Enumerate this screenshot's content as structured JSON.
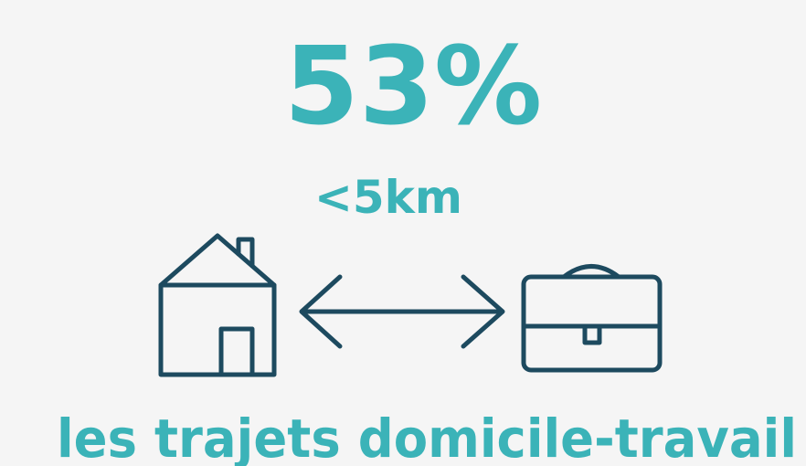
{
  "stat": {
    "value": "53%",
    "distance": "<5km",
    "caption": "les trajets domicile-travail"
  }
}
